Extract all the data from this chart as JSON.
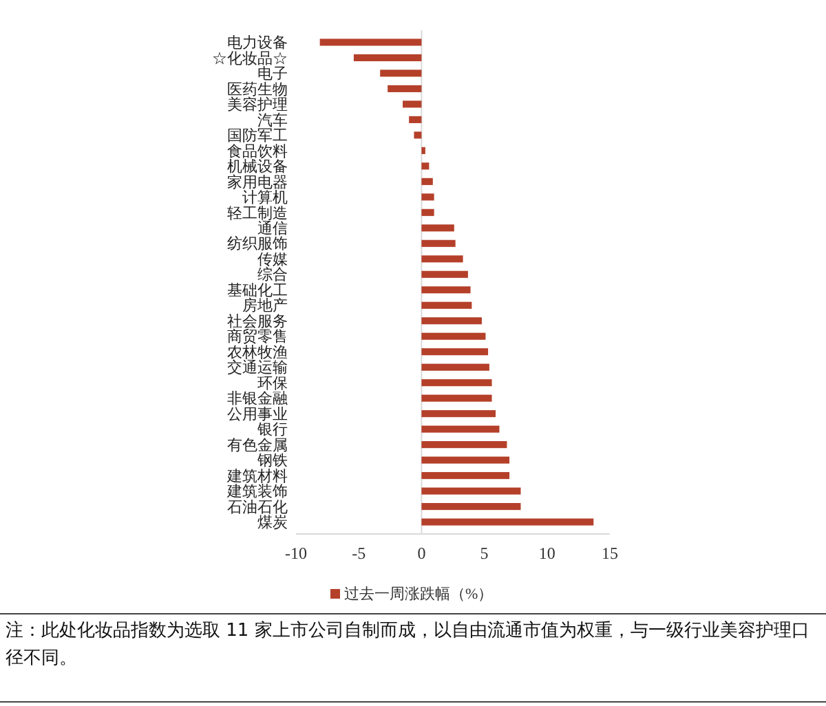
{
  "chart_data": {
    "type": "bar",
    "orientation": "horizontal",
    "categories": [
      "电力设备",
      "☆化妆品☆",
      "电子",
      "医药生物",
      "美容护理",
      "汽车",
      "国防军工",
      "食品饮料",
      "机械设备",
      "家用电器",
      "计算机",
      "轻工制造",
      "通信",
      "纺织服饰",
      "传媒",
      "综合",
      "基础化工",
      "房地产",
      "社会服务",
      "商贸零售",
      "农林牧渔",
      "交通运输",
      "环保",
      "非银金融",
      "公用事业",
      "银行",
      "有色金属",
      "钢铁",
      "建筑材料",
      "建筑装饰",
      "石油石化",
      "煤炭"
    ],
    "series": [
      {
        "name": "过去一周涨跌幅（%）",
        "color": "#b5402a",
        "values": [
          -8.1,
          -5.4,
          -3.3,
          -2.7,
          -1.5,
          -1.0,
          -0.6,
          0.3,
          0.6,
          0.9,
          1.0,
          1.0,
          2.6,
          2.7,
          3.3,
          3.7,
          3.9,
          4.0,
          4.8,
          5.1,
          5.3,
          5.4,
          5.6,
          5.6,
          5.9,
          6.2,
          6.8,
          7.0,
          7.0,
          7.9,
          7.9,
          13.7
        ]
      }
    ],
    "xlim": [
      -10,
      15
    ],
    "xticks": [
      -10,
      -5,
      0,
      5,
      10,
      15
    ],
    "legend": "bottom",
    "annotations": [
      "注：此处化妆品指数为选取 11 家上市公司自制而成，以自由流通市值为权重，与一级行业美容护理口径不同。"
    ]
  }
}
